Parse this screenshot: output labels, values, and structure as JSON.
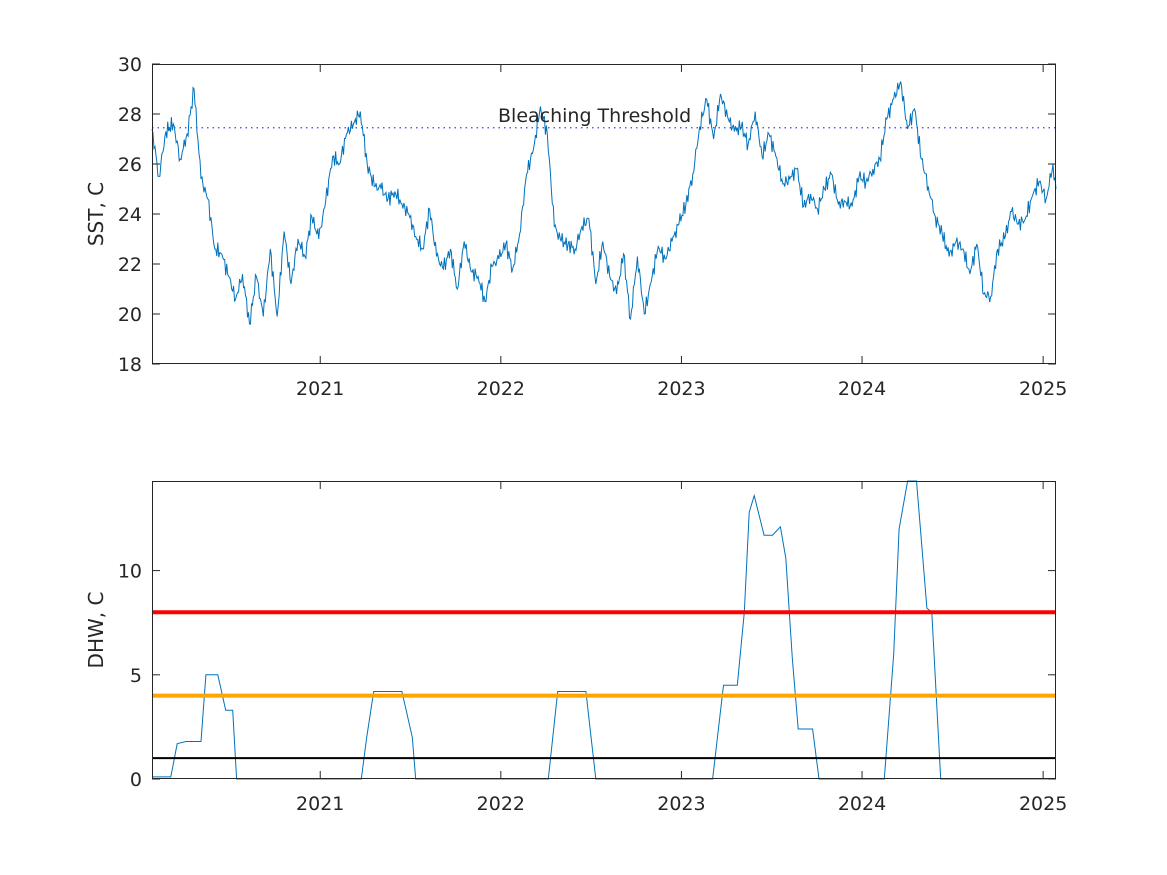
{
  "chart_data": [
    {
      "type": "line",
      "title": "",
      "xlabel": "",
      "ylabel": "SST, C",
      "xlim": [
        "2020-01-27",
        "2025-01-27"
      ],
      "ylim": [
        18,
        30
      ],
      "xticks": [
        "2021",
        "2022",
        "2023",
        "2024",
        "2025"
      ],
      "yticks": [
        "18",
        "20",
        "22",
        "24",
        "26",
        "28",
        "30"
      ],
      "grid": false,
      "annotation": {
        "text": "Bleaching Threshold",
        "y": 27.4
      },
      "threshold": {
        "y": 27.45,
        "style": "dotted",
        "color": "#3b3bff"
      },
      "series": [
        {
          "color": "#0072BD",
          "x": [
            "2020-01-27",
            "2020-02-10",
            "2020-02-24",
            "2020-03-10",
            "2020-03-24",
            "2020-04-07",
            "2020-04-21",
            "2020-05-05",
            "2020-05-19",
            "2020-06-02",
            "2020-06-16",
            "2020-06-30",
            "2020-07-14",
            "2020-07-28",
            "2020-08-11",
            "2020-08-25",
            "2020-09-08",
            "2020-09-22",
            "2020-10-06",
            "2020-10-20",
            "2020-11-03",
            "2020-11-17",
            "2020-12-01",
            "2020-12-15",
            "2020-12-29",
            "2021-01-12",
            "2021-01-26",
            "2021-02-09",
            "2021-02-23",
            "2021-03-09",
            "2021-03-23",
            "2021-04-06",
            "2021-04-20",
            "2021-05-04",
            "2021-05-18",
            "2021-06-01",
            "2021-06-15",
            "2021-06-29",
            "2021-07-13",
            "2021-07-27",
            "2021-08-10",
            "2021-08-24",
            "2021-09-07",
            "2021-09-21",
            "2021-10-05",
            "2021-10-19",
            "2021-11-02",
            "2021-11-16",
            "2021-11-30",
            "2021-12-14",
            "2021-12-28",
            "2022-01-11",
            "2022-01-25",
            "2022-02-08",
            "2022-02-22",
            "2022-03-08",
            "2022-03-22",
            "2022-04-05",
            "2022-04-19",
            "2022-05-03",
            "2022-05-17",
            "2022-05-31",
            "2022-06-14",
            "2022-06-28",
            "2022-07-12",
            "2022-07-26",
            "2022-08-09",
            "2022-08-23",
            "2022-09-06",
            "2022-09-20",
            "2022-10-04",
            "2022-10-18",
            "2022-11-01",
            "2022-11-15",
            "2022-11-29",
            "2022-12-13",
            "2022-12-27",
            "2023-01-10",
            "2023-01-24",
            "2023-02-07",
            "2023-02-21",
            "2023-03-07",
            "2023-03-21",
            "2023-04-04",
            "2023-04-18",
            "2023-05-02",
            "2023-05-16",
            "2023-05-30",
            "2023-06-13",
            "2023-06-27",
            "2023-07-11",
            "2023-07-25",
            "2023-08-08",
            "2023-08-22",
            "2023-09-05",
            "2023-09-19",
            "2023-10-03",
            "2023-10-17",
            "2023-10-31",
            "2023-11-14",
            "2023-11-28",
            "2023-12-12",
            "2023-12-26",
            "2024-01-09",
            "2024-01-23",
            "2024-02-06",
            "2024-02-20",
            "2024-03-05",
            "2024-03-19",
            "2024-04-02",
            "2024-04-16",
            "2024-04-30",
            "2024-05-14",
            "2024-05-28",
            "2024-06-11",
            "2024-06-25",
            "2024-07-09",
            "2024-07-23",
            "2024-08-06",
            "2024-08-20",
            "2024-09-03",
            "2024-09-17",
            "2024-10-01",
            "2024-10-15",
            "2024-10-29",
            "2024-11-12",
            "2024-11-26",
            "2024-12-10",
            "2024-12-24",
            "2025-01-07",
            "2025-01-21",
            "2025-01-27"
          ],
          "y": [
            27.4,
            25.5,
            27.3,
            27.6,
            26.2,
            27.2,
            29.0,
            25.4,
            24.6,
            22.6,
            22.4,
            21.5,
            20.6,
            21.6,
            19.6,
            21.5,
            19.9,
            22.6,
            19.9,
            23.3,
            21.2,
            23.0,
            22.3,
            23.9,
            23.0,
            24.5,
            26.3,
            26.0,
            27.2,
            27.6,
            28.1,
            26.0,
            25.1,
            25.0,
            24.6,
            24.9,
            24.4,
            24.0,
            23.1,
            22.6,
            24.2,
            22.3,
            21.8,
            22.6,
            21.0,
            22.9,
            21.7,
            21.5,
            20.5,
            21.9,
            22.2,
            22.8,
            21.8,
            23.2,
            25.6,
            26.6,
            28.3,
            27.2,
            23.5,
            22.9,
            22.8,
            22.6,
            23.5,
            23.8,
            21.2,
            22.9,
            21.5,
            20.8,
            22.4,
            19.8,
            22.3,
            20.0,
            21.3,
            22.7,
            22.2,
            22.9,
            23.6,
            24.4,
            25.6,
            27.5,
            28.6,
            27.0,
            28.8,
            27.9,
            27.3,
            27.5,
            26.8,
            28.1,
            26.3,
            27.2,
            26.3,
            25.2,
            25.4,
            25.8,
            24.3,
            24.8,
            24.2,
            25.0,
            25.6,
            24.4,
            24.5,
            24.3,
            25.5,
            25.3,
            25.8,
            26.2,
            27.8,
            28.6,
            29.3,
            27.4,
            28.2,
            26.2,
            25.1,
            23.9,
            23.2,
            22.3,
            22.9,
            22.6,
            21.6,
            22.8,
            20.8,
            20.7,
            22.6,
            23.0,
            24.1,
            23.6,
            23.8,
            24.7,
            25.3,
            24.6,
            26.0,
            25.0
          ]
        }
      ]
    },
    {
      "type": "line",
      "title": "",
      "xlabel": "",
      "ylabel": "DHW, C",
      "xlim": [
        "2020-01-27",
        "2025-01-27"
      ],
      "ylim": [
        0,
        14.3
      ],
      "xticks": [
        "2021",
        "2022",
        "2023",
        "2024",
        "2025"
      ],
      "yticks": [
        "0",
        "5",
        "10"
      ],
      "grid": false,
      "reference_lines": [
        {
          "y": 8,
          "color": "#ff0000"
        },
        {
          "y": 4,
          "color": "#ffa500"
        },
        {
          "y": 1,
          "color": "#000000"
        }
      ],
      "series": [
        {
          "color": "#0072BD",
          "x": [
            "2020-01-27",
            "2020-03-05",
            "2020-03-18",
            "2020-04-05",
            "2020-05-05",
            "2020-05-15",
            "2020-06-08",
            "2020-06-24",
            "2020-07-08",
            "2020-07-16",
            "2020-08-15",
            "2021-01-01",
            "2021-03-25",
            "2021-04-05",
            "2021-04-19",
            "2021-05-03",
            "2021-05-12",
            "2021-05-28",
            "2021-06-15",
            "2021-07-06",
            "2021-07-13",
            "2021-08-30",
            "2022-02-01",
            "2022-04-07",
            "2022-04-26",
            "2022-05-11",
            "2022-05-18",
            "2022-06-22",
            "2022-07-12",
            "2022-09-30",
            "2023-01-06",
            "2023-02-15",
            "2023-03-05",
            "2023-03-27",
            "2023-04-24",
            "2023-05-08",
            "2023-05-18",
            "2023-05-28",
            "2023-06-17",
            "2023-07-04",
            "2023-07-20",
            "2023-07-31",
            "2023-08-13",
            "2023-08-25",
            "2023-09-23",
            "2023-10-06",
            "2023-10-14",
            "2024-01-19",
            "2024-02-06",
            "2024-02-15",
            "2024-03-05",
            "2024-03-16",
            "2024-04-02",
            "2024-04-20",
            "2024-05-11",
            "2024-05-21",
            "2024-06-08",
            "2024-06-26",
            "2024-07-09",
            "2024-07-17",
            "2024-09-30",
            "2025-01-27"
          ],
          "y": [
            0.1,
            0.1,
            1.7,
            1.8,
            1.8,
            5.0,
            5.0,
            3.3,
            3.3,
            0.0,
            0.0,
            0.0,
            0.0,
            2.0,
            4.2,
            4.2,
            4.2,
            4.2,
            4.2,
            2.0,
            0.0,
            0.0,
            0.0,
            0.0,
            4.2,
            4.2,
            4.2,
            4.2,
            0.0,
            0.0,
            0.0,
            0.0,
            0.0,
            4.5,
            4.5,
            8.0,
            12.8,
            13.6,
            11.7,
            11.7,
            12.1,
            10.6,
            5.8,
            2.4,
            2.4,
            0.0,
            0.0,
            0.0,
            0.0,
            0.0,
            6.0,
            12.0,
            14.3,
            14.3,
            8.2,
            8.0,
            0.0,
            0.0,
            0.0,
            0.0,
            0.0,
            0.0
          ]
        }
      ]
    }
  ]
}
